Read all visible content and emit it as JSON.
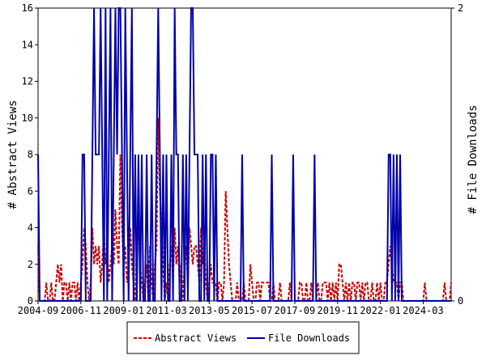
{
  "chart_data": {
    "type": "line",
    "y_label": "# Abstract Views",
    "y2_label": "# File Downloads",
    "xlim": [
      "2004-09",
      "2025-08"
    ],
    "xticks": [
      "2004-09",
      "2006-11",
      "2009-01",
      "2011-03",
      "2013-05",
      "2015-07",
      "2017-09",
      "2019-11",
      "2022-01",
      "2024-03"
    ],
    "ylim": [
      0,
      16
    ],
    "yticks": [
      0,
      2,
      4,
      6,
      8,
      10,
      12,
      14,
      16
    ],
    "y2lim": [
      0,
      2
    ],
    "y2ticks": [
      0,
      2
    ],
    "legend": "bottom",
    "x": [
      "2004-09",
      "2004-10",
      "2004-11",
      "2004-12",
      "2005-01",
      "2005-02",
      "2005-03",
      "2005-04",
      "2005-05",
      "2005-06",
      "2005-07",
      "2005-08",
      "2005-09",
      "2005-10",
      "2005-11",
      "2005-12",
      "2006-01",
      "2006-02",
      "2006-03",
      "2006-04",
      "2006-05",
      "2006-06",
      "2006-07",
      "2006-08",
      "2006-09",
      "2006-10",
      "2006-11",
      "2006-12",
      "2007-01",
      "2007-02",
      "2007-03",
      "2007-04",
      "2007-05",
      "2007-06",
      "2007-07",
      "2007-08",
      "2007-09",
      "2007-10",
      "2007-11",
      "2007-12",
      "2008-01",
      "2008-02",
      "2008-03",
      "2008-04",
      "2008-05",
      "2008-06",
      "2008-07",
      "2008-08",
      "2008-09",
      "2008-10",
      "2008-11",
      "2008-12",
      "2009-01",
      "2009-02",
      "2009-03",
      "2009-04",
      "2009-05",
      "2009-06",
      "2009-07",
      "2009-08",
      "2009-09",
      "2009-10",
      "2009-11",
      "2009-12",
      "2010-01",
      "2010-02",
      "2010-03",
      "2010-04",
      "2010-05",
      "2010-06",
      "2010-07",
      "2010-08",
      "2010-09",
      "2010-10",
      "2010-11",
      "2010-12",
      "2011-01",
      "2011-02",
      "2011-03",
      "2011-04",
      "2011-05",
      "2011-06",
      "2011-07",
      "2011-08",
      "2011-09",
      "2011-10",
      "2011-11",
      "2011-12",
      "2012-01",
      "2012-02",
      "2012-03",
      "2012-04",
      "2012-05",
      "2012-06",
      "2012-07",
      "2012-08",
      "2012-09",
      "2012-10",
      "2012-11",
      "2012-12",
      "2013-01",
      "2013-02",
      "2013-03",
      "2013-04",
      "2013-05",
      "2013-06",
      "2013-07",
      "2013-08",
      "2013-09",
      "2013-10",
      "2013-11",
      "2013-12",
      "2014-01",
      "2014-02",
      "2014-03",
      "2014-04",
      "2014-05",
      "2014-06",
      "2014-07",
      "2014-08",
      "2014-09",
      "2014-10",
      "2014-11",
      "2014-12",
      "2015-01",
      "2015-02",
      "2015-03",
      "2015-04",
      "2015-05",
      "2015-06",
      "2015-07",
      "2015-08",
      "2015-09",
      "2015-10",
      "2015-11",
      "2015-12",
      "2016-01",
      "2016-02",
      "2016-03",
      "2016-04",
      "2016-05",
      "2016-06",
      "2016-07",
      "2016-08",
      "2016-09",
      "2016-10",
      "2016-11",
      "2016-12",
      "2017-01",
      "2017-02",
      "2017-03",
      "2017-04",
      "2017-05",
      "2017-06",
      "2017-07",
      "2017-08",
      "2017-09",
      "2017-10",
      "2017-11",
      "2017-12",
      "2018-01",
      "2018-02",
      "2018-03",
      "2018-04",
      "2018-05",
      "2018-06",
      "2018-07",
      "2018-08",
      "2018-09",
      "2018-10",
      "2018-11",
      "2018-12",
      "2019-01",
      "2019-02",
      "2019-03",
      "2019-04",
      "2019-05",
      "2019-06",
      "2019-07",
      "2019-08",
      "2019-09",
      "2019-10",
      "2019-11",
      "2019-12",
      "2020-01",
      "2020-02",
      "2020-03",
      "2020-04",
      "2020-05",
      "2020-06",
      "2020-07",
      "2020-08",
      "2020-09",
      "2020-10",
      "2020-11",
      "2020-12",
      "2021-01",
      "2021-02",
      "2021-03",
      "2021-04",
      "2021-05",
      "2021-06",
      "2021-07",
      "2021-08",
      "2021-09",
      "2021-10",
      "2021-11",
      "2021-12",
      "2022-01",
      "2022-02",
      "2022-03",
      "2022-04",
      "2022-05",
      "2022-06",
      "2022-07",
      "2022-08",
      "2022-09",
      "2022-10",
      "2022-11",
      "2022-12",
      "2023-01",
      "2023-02",
      "2023-03",
      "2023-04",
      "2023-05",
      "2023-06",
      "2023-07",
      "2023-08",
      "2023-09",
      "2023-10",
      "2023-11",
      "2023-12",
      "2024-01",
      "2024-02",
      "2024-03",
      "2024-04",
      "2024-05",
      "2024-06",
      "2024-07",
      "2024-08",
      "2024-09",
      "2024-10",
      "2024-11",
      "2024-12",
      "2025-01",
      "2025-02",
      "2025-03",
      "2025-04",
      "2025-05",
      "2025-06",
      "2025-07",
      "2025-08"
    ],
    "series": [
      {
        "name": "Abstract Views",
        "color": "#cc0000",
        "dash": true,
        "values": [
          3,
          0,
          0,
          0,
          0,
          1,
          0,
          0,
          1,
          0,
          0,
          1,
          2,
          1,
          2,
          0,
          1,
          1,
          0,
          1,
          0,
          1,
          1,
          0,
          1,
          0,
          1,
          2,
          4,
          3,
          1,
          0,
          1,
          4,
          2,
          3,
          2,
          3,
          1,
          2,
          4,
          2,
          3,
          1,
          2,
          3,
          2,
          5,
          3,
          2,
          8,
          4,
          2,
          3,
          1,
          2,
          4,
          2,
          1,
          0,
          3,
          4,
          2,
          1,
          0,
          1,
          2,
          0,
          3,
          1,
          0,
          2,
          3,
          10,
          6,
          4,
          2,
          0,
          1,
          0,
          2,
          3,
          1,
          4,
          2,
          3,
          1,
          2,
          0,
          2,
          3,
          1,
          4,
          3,
          2,
          3,
          3,
          2,
          1,
          4,
          2,
          3,
          1,
          0,
          1,
          2,
          1,
          1,
          1,
          0,
          1,
          1,
          0,
          1,
          6,
          4,
          2,
          1,
          0,
          0,
          0,
          1,
          0,
          0,
          0,
          1,
          0,
          0,
          0,
          2,
          1,
          0,
          0,
          1,
          1,
          0,
          1,
          1,
          1,
          1,
          1,
          0,
          0,
          1,
          0,
          0,
          0,
          1,
          0,
          0,
          0,
          0,
          0,
          1,
          0,
          0,
          0,
          0,
          0,
          1,
          1,
          0,
          0,
          1,
          0,
          0,
          1,
          0,
          0,
          0,
          1,
          0,
          0,
          1,
          1,
          1,
          0,
          1,
          0,
          1,
          0,
          1,
          0,
          2,
          2,
          1,
          0,
          1,
          0,
          1,
          0,
          1,
          1,
          0,
          1,
          1,
          0,
          1,
          0,
          1,
          1,
          0,
          0,
          1,
          0,
          0,
          1,
          0,
          1,
          0,
          0,
          1,
          1,
          2,
          3,
          2,
          1,
          1,
          1,
          0,
          1,
          1,
          0,
          0,
          0,
          0,
          0,
          0,
          0,
          0,
          0,
          0,
          0,
          0,
          0,
          1,
          0,
          0,
          0,
          0,
          0,
          0,
          0,
          0,
          0,
          0,
          0,
          1,
          0,
          0,
          0,
          1
        ]
      },
      {
        "name": "File Downloads",
        "color": "#0000aa",
        "axis": "y2",
        "values": [
          1,
          0,
          0,
          0,
          0,
          0,
          0,
          0,
          0,
          0,
          0,
          0,
          0,
          0,
          0,
          0,
          0,
          0,
          0,
          0,
          0,
          0,
          0,
          0,
          0,
          0,
          0,
          1,
          1,
          0,
          0,
          0,
          0,
          1,
          2,
          1,
          1,
          1,
          2,
          1,
          0,
          2,
          0,
          1,
          2,
          0,
          1,
          2,
          1,
          2,
          2,
          1,
          0,
          2,
          1,
          0,
          1,
          2,
          0,
          1,
          0,
          1,
          0,
          1,
          0,
          0,
          1,
          0,
          0,
          1,
          0,
          0,
          1,
          2,
          1,
          0,
          1,
          0,
          1,
          0,
          0,
          1,
          0,
          2,
          1,
          1,
          0,
          0,
          1,
          0,
          1,
          0,
          1,
          2,
          2,
          1,
          1,
          1,
          0,
          0,
          1,
          0,
          1,
          0,
          0,
          1,
          1,
          0,
          1,
          0,
          0,
          0,
          0,
          0,
          0,
          0,
          0,
          0,
          0,
          0,
          0,
          0,
          0,
          0,
          1,
          0,
          0,
          0,
          0,
          0,
          0,
          0,
          0,
          0,
          0,
          0,
          0,
          0,
          0,
          0,
          0,
          0,
          1,
          0,
          0,
          0,
          0,
          0,
          0,
          0,
          0,
          0,
          0,
          0,
          0,
          1,
          0,
          0,
          0,
          0,
          0,
          0,
          0,
          0,
          0,
          0,
          0,
          0,
          1,
          0,
          0,
          0,
          0,
          0,
          0,
          0,
          0,
          0,
          0,
          0,
          0,
          0,
          0,
          0,
          0,
          0,
          0,
          0,
          0,
          0,
          0,
          0,
          0,
          0,
          0,
          0,
          0,
          0,
          0,
          0,
          0,
          0,
          0,
          0,
          0,
          0,
          0,
          0,
          0,
          0,
          0,
          0,
          0,
          1,
          1,
          0,
          1,
          0,
          1,
          0,
          1,
          0,
          0,
          0,
          0,
          0,
          0,
          0,
          0,
          0,
          0,
          0,
          0,
          0,
          0,
          0,
          0,
          0,
          0,
          0,
          0,
          0,
          0,
          0,
          0,
          0,
          0,
          0,
          0,
          0,
          0,
          0
        ]
      }
    ]
  }
}
